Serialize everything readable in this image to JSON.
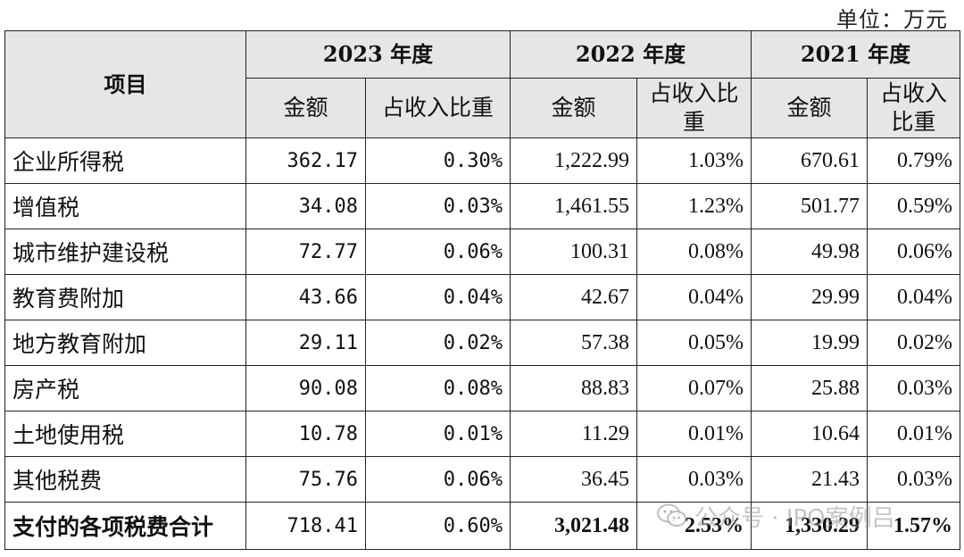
{
  "unit_label": "单位：万元",
  "header": {
    "item_label": "项目",
    "years": [
      "2023 年度",
      "2022 年度",
      "2021 年度"
    ],
    "amount_label": "金额",
    "share_label": "占收入比重"
  },
  "rows": [
    {
      "name": "企业所得税",
      "v2023": "362.17",
      "p2023": "0.30%",
      "v2022": "1,222.99",
      "p2022": "1.03%",
      "v2021": "670.61",
      "p2021": "0.79%"
    },
    {
      "name": "增值税",
      "v2023": "34.08",
      "p2023": "0.03%",
      "v2022": "1,461.55",
      "p2022": "1.23%",
      "v2021": "501.77",
      "p2021": "0.59%"
    },
    {
      "name": "城市维护建设税",
      "v2023": "72.77",
      "p2023": "0.06%",
      "v2022": "100.31",
      "p2022": "0.08%",
      "v2021": "49.98",
      "p2021": "0.06%"
    },
    {
      "name": "教育费附加",
      "v2023": "43.66",
      "p2023": "0.04%",
      "v2022": "42.67",
      "p2022": "0.04%",
      "v2021": "29.99",
      "p2021": "0.04%"
    },
    {
      "name": "地方教育附加",
      "v2023": "29.11",
      "p2023": "0.02%",
      "v2022": "57.38",
      "p2022": "0.05%",
      "v2021": "19.99",
      "p2021": "0.02%"
    },
    {
      "name": "房产税",
      "v2023": "90.08",
      "p2023": "0.08%",
      "v2022": "88.83",
      "p2022": "0.07%",
      "v2021": "25.88",
      "p2021": "0.03%"
    },
    {
      "name": "土地使用税",
      "v2023": "10.78",
      "p2023": "0.01%",
      "v2022": "11.29",
      "p2022": "0.01%",
      "v2021": "10.64",
      "p2021": "0.01%"
    },
    {
      "name": "其他税费",
      "v2023": "75.76",
      "p2023": "0.06%",
      "v2022": "36.45",
      "p2022": "0.03%",
      "v2021": "21.43",
      "p2021": "0.03%"
    }
  ],
  "total": {
    "name": "支付的各项税费合计",
    "v2023": "718.41",
    "p2023": "0.60%",
    "v2022": "3,021.48",
    "p2022": "2.53%",
    "v2021": "1,330.29",
    "p2021": "1.57%"
  },
  "watermark": {
    "text": "公众号 · IPO案例吕",
    "icon": "wechat-icon"
  },
  "colors": {
    "header_bg": "#e7e6e6",
    "border": "#222222"
  }
}
